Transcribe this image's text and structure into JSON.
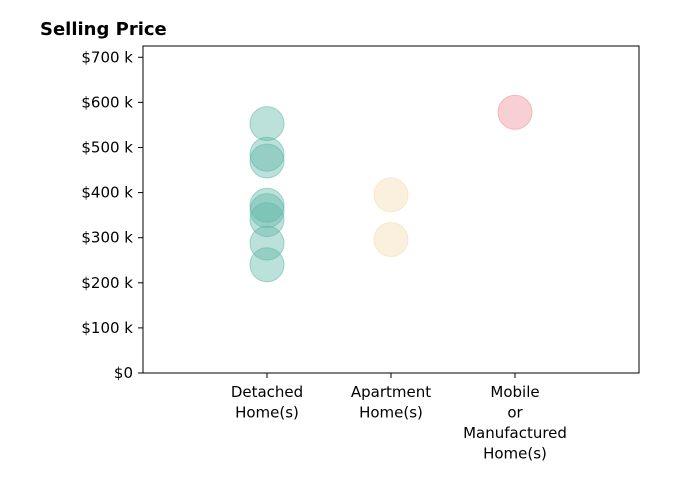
{
  "chart_data": {
    "type": "scatter",
    "title": "Selling Price",
    "xlabel": "",
    "ylabel": "",
    "ylim": [
      0,
      725000
    ],
    "yticks": [
      0,
      100000,
      200000,
      300000,
      400000,
      500000,
      600000,
      700000
    ],
    "ytick_labels": [
      "$0",
      "$100 k",
      "$200 k",
      "$300 k",
      "$400 k",
      "$500 k",
      "$600 k",
      "$700 k"
    ],
    "categories": [
      [
        "Detached",
        "Home(s)"
      ],
      [
        "Apartment",
        "Home(s)"
      ],
      [
        "Mobile",
        "or",
        "Manufactured",
        "Home(s)"
      ]
    ],
    "series": [
      {
        "category_index": 0,
        "color": "#5fb8a6",
        "values": [
          553000,
          485000,
          470000,
          372000,
          360000,
          340000,
          288000,
          240000
        ]
      },
      {
        "category_index": 1,
        "color": "#f2dcae",
        "values": [
          395000,
          296000
        ]
      },
      {
        "category_index": 2,
        "color": "#ef8f96",
        "values": [
          578000
        ]
      }
    ],
    "grid": false,
    "legend": "none"
  }
}
